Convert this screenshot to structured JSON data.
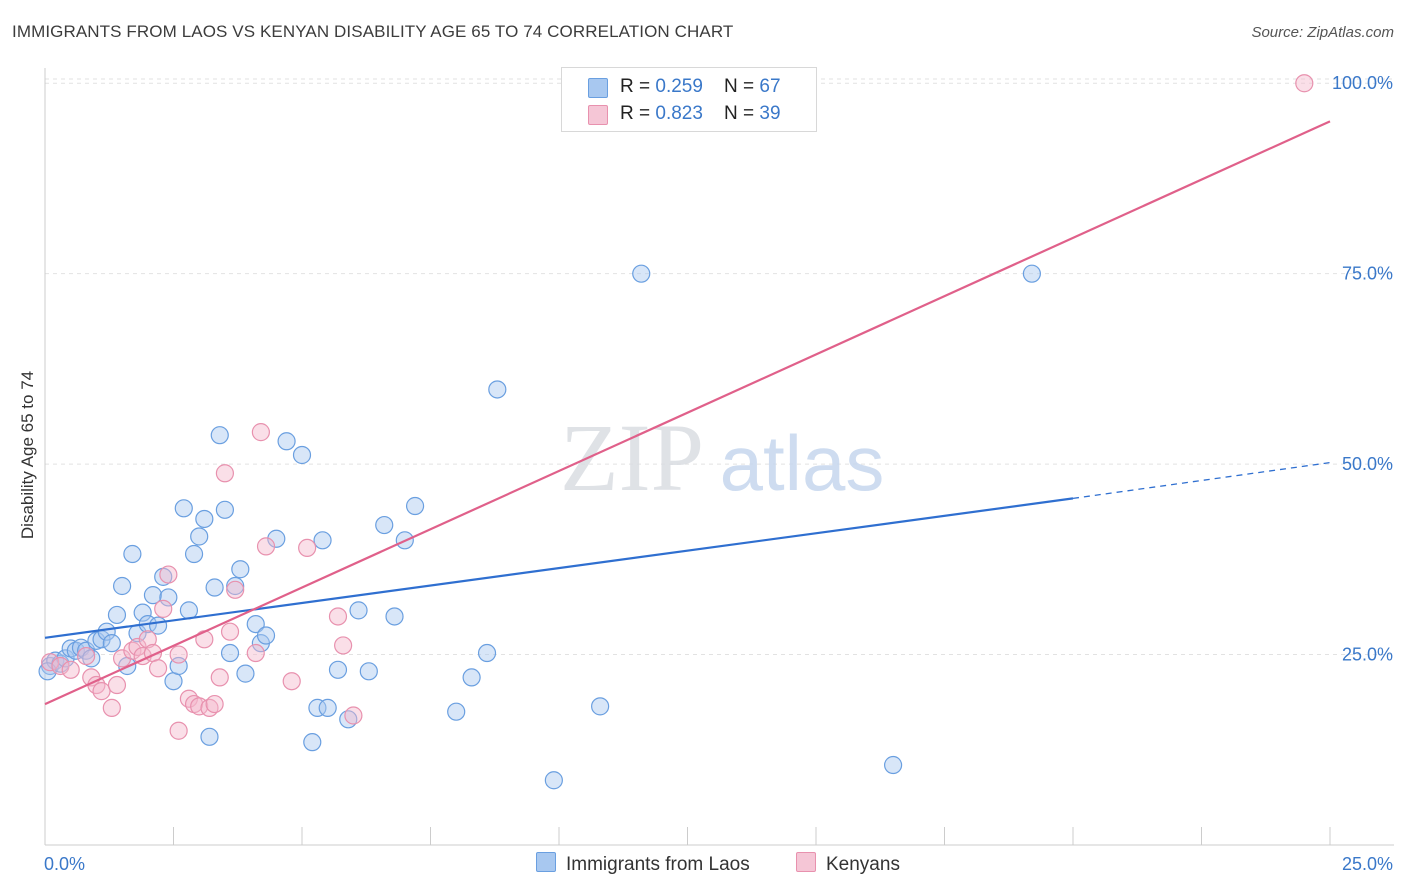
{
  "title": "IMMIGRANTS FROM LAOS VS KENYAN DISABILITY AGE 65 TO 74 CORRELATION CHART",
  "source": "Source: ZipAtlas.com",
  "watermark": {
    "zip": "ZIP",
    "atlas": "atlas"
  },
  "legend": [
    {
      "r_label": "R = ",
      "r": "0.259",
      "n_label": "N = ",
      "n": "67",
      "color": "#a8c8f0"
    },
    {
      "r_label": "R = ",
      "r": "0.823",
      "n_label": "N = ",
      "n": "39",
      "color": "#f5b8cc"
    }
  ],
  "bottom_legend": [
    "Immigrants from Laos",
    "Kenyans"
  ],
  "chart_data": {
    "type": "scatter",
    "title": "IMMIGRANTS FROM LAOS VS KENYAN DISABILITY AGE 65 TO 74 CORRELATION CHART",
    "xlabel": "",
    "ylabel": "Disability Age 65 to 74",
    "xlim": [
      0,
      25
    ],
    "ylim": [
      0,
      102
    ],
    "x_tick_labels": [
      "0.0%",
      "25.0%"
    ],
    "y_tick_labels": [
      "25.0%",
      "50.0%",
      "75.0%",
      "100.0%"
    ],
    "y_tick_values": [
      25,
      50,
      75,
      100
    ],
    "series": [
      {
        "name": "Immigrants from Laos",
        "color": "#6a9fe0",
        "fill": "#a8c8f0",
        "trend": {
          "x0": 0,
          "y0": 27.2,
          "x1": 20,
          "y1": 45.5,
          "dash_to_x": 25,
          "dash_to_y": 50.2,
          "color": "#2f6fd0"
        },
        "points": [
          [
            0.1,
            23.5
          ],
          [
            0.2,
            24.2
          ],
          [
            0.3,
            23.8
          ],
          [
            0.4,
            24.5
          ],
          [
            0.5,
            25.8
          ],
          [
            0.6,
            25.5
          ],
          [
            0.7,
            25.9
          ],
          [
            0.8,
            25.5
          ],
          [
            0.9,
            24.5
          ],
          [
            1.0,
            26.8
          ],
          [
            1.1,
            27.0
          ],
          [
            1.2,
            28.0
          ],
          [
            1.3,
            26.5
          ],
          [
            1.4,
            30.2
          ],
          [
            1.5,
            34.0
          ],
          [
            1.6,
            23.5
          ],
          [
            1.7,
            38.2
          ],
          [
            1.8,
            27.8
          ],
          [
            1.9,
            30.5
          ],
          [
            2.0,
            29.0
          ],
          [
            2.1,
            32.8
          ],
          [
            2.2,
            28.8
          ],
          [
            2.3,
            35.2
          ],
          [
            2.4,
            32.5
          ],
          [
            2.5,
            21.5
          ],
          [
            2.6,
            23.5
          ],
          [
            2.7,
            44.2
          ],
          [
            2.8,
            30.8
          ],
          [
            2.9,
            38.2
          ],
          [
            3.0,
            40.5
          ],
          [
            3.1,
            42.8
          ],
          [
            3.2,
            14.2
          ],
          [
            3.3,
            33.8
          ],
          [
            3.4,
            53.8
          ],
          [
            3.5,
            44.0
          ],
          [
            3.6,
            25.2
          ],
          [
            3.7,
            34.0
          ],
          [
            3.8,
            36.2
          ],
          [
            3.9,
            22.5
          ],
          [
            4.1,
            29.0
          ],
          [
            4.2,
            26.5
          ],
          [
            4.3,
            27.5
          ],
          [
            4.5,
            40.2
          ],
          [
            4.7,
            53.0
          ],
          [
            5.0,
            51.2
          ],
          [
            5.2,
            13.5
          ],
          [
            5.3,
            18.0
          ],
          [
            5.4,
            40.0
          ],
          [
            5.5,
            18.0
          ],
          [
            5.7,
            23.0
          ],
          [
            5.9,
            16.5
          ],
          [
            6.1,
            30.8
          ],
          [
            6.3,
            22.8
          ],
          [
            6.6,
            42.0
          ],
          [
            6.8,
            30.0
          ],
          [
            7.0,
            40.0
          ],
          [
            7.2,
            44.5
          ],
          [
            8.0,
            17.5
          ],
          [
            8.3,
            22.0
          ],
          [
            8.6,
            25.2
          ],
          [
            8.8,
            59.8
          ],
          [
            9.9,
            8.5
          ],
          [
            10.8,
            18.2
          ],
          [
            11.6,
            75.0
          ],
          [
            16.5,
            10.5
          ],
          [
            19.2,
            75.0
          ],
          [
            0.05,
            22.8
          ]
        ]
      },
      {
        "name": "Kenyans",
        "color": "#e891ae",
        "fill": "#f5b8cc",
        "trend": {
          "x0": 0,
          "y0": 18.5,
          "x1": 25,
          "y1": 95.0,
          "color": "#e0608a"
        },
        "points": [
          [
            0.1,
            24.0
          ],
          [
            0.3,
            23.5
          ],
          [
            0.5,
            23.0
          ],
          [
            0.8,
            24.8
          ],
          [
            0.9,
            22.0
          ],
          [
            1.0,
            21.0
          ],
          [
            1.1,
            20.2
          ],
          [
            1.3,
            18.0
          ],
          [
            1.4,
            21.0
          ],
          [
            1.5,
            24.5
          ],
          [
            1.7,
            25.5
          ],
          [
            1.8,
            26.0
          ],
          [
            1.9,
            24.8
          ],
          [
            2.0,
            27.0
          ],
          [
            2.1,
            25.2
          ],
          [
            2.2,
            23.2
          ],
          [
            2.3,
            31.0
          ],
          [
            2.4,
            35.5
          ],
          [
            2.6,
            25.0
          ],
          [
            2.6,
            15.0
          ],
          [
            2.8,
            19.2
          ],
          [
            2.9,
            18.5
          ],
          [
            3.0,
            18.2
          ],
          [
            3.1,
            27.0
          ],
          [
            3.2,
            18.0
          ],
          [
            3.3,
            18.5
          ],
          [
            3.4,
            22.0
          ],
          [
            3.5,
            48.8
          ],
          [
            3.6,
            28.0
          ],
          [
            3.7,
            33.5
          ],
          [
            4.1,
            25.2
          ],
          [
            4.2,
            54.2
          ],
          [
            4.3,
            39.2
          ],
          [
            4.8,
            21.5
          ],
          [
            5.1,
            39.0
          ],
          [
            5.7,
            30.0
          ],
          [
            5.8,
            26.2
          ],
          [
            6.0,
            17.0
          ],
          [
            24.5,
            100.0
          ]
        ]
      }
    ]
  }
}
